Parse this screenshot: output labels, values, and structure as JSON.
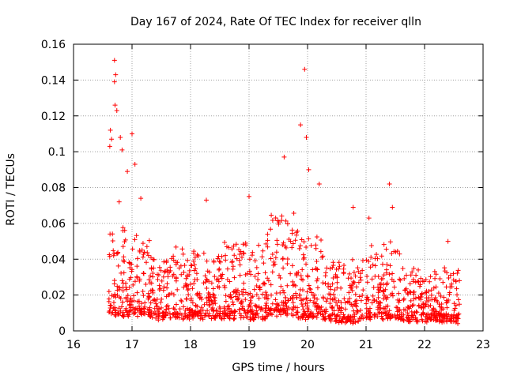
{
  "chart_data": {
    "type": "scatter",
    "title": "Day 167 of 2024, Rate Of TEC Index for receiver qlln",
    "xlabel": "GPS time / hours",
    "ylabel": "ROTI / TECUs",
    "xlim": [
      16,
      23
    ],
    "ylim": [
      0,
      0.16
    ],
    "xticks": [
      16,
      17,
      18,
      19,
      20,
      21,
      22,
      23
    ],
    "xtick_labels": [
      "16",
      "17",
      "18",
      "19",
      "20",
      "21",
      "22",
      "23"
    ],
    "yticks": [
      0,
      0.02,
      0.04,
      0.06,
      0.08,
      0.1,
      0.12,
      0.14,
      0.16
    ],
    "ytick_labels": [
      "0",
      "0.02",
      "0.04",
      "0.06",
      "0.08",
      "0.1",
      "0.12",
      "0.14",
      "0.16"
    ],
    "grid": true,
    "marker": "+",
    "color": "#ff0000",
    "series": [
      {
        "name": "ROTI",
        "notable_points": [
          {
            "x": 16.7,
            "y": 0.151
          },
          {
            "x": 16.72,
            "y": 0.143
          },
          {
            "x": 16.7,
            "y": 0.139
          },
          {
            "x": 16.71,
            "y": 0.126
          },
          {
            "x": 16.74,
            "y": 0.123
          },
          {
            "x": 16.63,
            "y": 0.112
          },
          {
            "x": 16.65,
            "y": 0.107
          },
          {
            "x": 16.62,
            "y": 0.103
          },
          {
            "x": 16.8,
            "y": 0.108
          },
          {
            "x": 16.83,
            "y": 0.101
          },
          {
            "x": 17.0,
            "y": 0.11
          },
          {
            "x": 16.92,
            "y": 0.089
          },
          {
            "x": 17.05,
            "y": 0.093
          },
          {
            "x": 16.78,
            "y": 0.072
          },
          {
            "x": 17.15,
            "y": 0.074
          },
          {
            "x": 18.27,
            "y": 0.073
          },
          {
            "x": 19.0,
            "y": 0.075
          },
          {
            "x": 19.6,
            "y": 0.097
          },
          {
            "x": 19.88,
            "y": 0.115
          },
          {
            "x": 19.95,
            "y": 0.146
          },
          {
            "x": 19.98,
            "y": 0.108
          },
          {
            "x": 20.02,
            "y": 0.09
          },
          {
            "x": 20.2,
            "y": 0.082
          },
          {
            "x": 20.78,
            "y": 0.069
          },
          {
            "x": 21.05,
            "y": 0.063
          },
          {
            "x": 21.4,
            "y": 0.082
          },
          {
            "x": 21.45,
            "y": 0.069
          },
          {
            "x": 22.4,
            "y": 0.05
          }
        ],
        "activity_envelope": [
          {
            "t0": 16.6,
            "t1": 16.9,
            "baseline": 0.01,
            "peak": 0.06
          },
          {
            "t0": 16.9,
            "t1": 17.3,
            "baseline": 0.01,
            "peak": 0.055
          },
          {
            "t0": 17.3,
            "t1": 18.0,
            "baseline": 0.008,
            "peak": 0.045
          },
          {
            "t0": 18.0,
            "t1": 18.5,
            "baseline": 0.008,
            "peak": 0.045
          },
          {
            "t0": 18.5,
            "t1": 19.3,
            "baseline": 0.008,
            "peak": 0.05
          },
          {
            "t0": 19.3,
            "t1": 19.8,
            "baseline": 0.01,
            "peak": 0.065
          },
          {
            "t0": 19.8,
            "t1": 20.3,
            "baseline": 0.008,
            "peak": 0.055
          },
          {
            "t0": 20.3,
            "t1": 20.95,
            "baseline": 0.006,
            "peak": 0.04
          },
          {
            "t0": 21.0,
            "t1": 21.6,
            "baseline": 0.008,
            "peak": 0.05
          },
          {
            "t0": 21.6,
            "t1": 22.6,
            "baseline": 0.006,
            "peak": 0.035
          }
        ]
      }
    ]
  }
}
